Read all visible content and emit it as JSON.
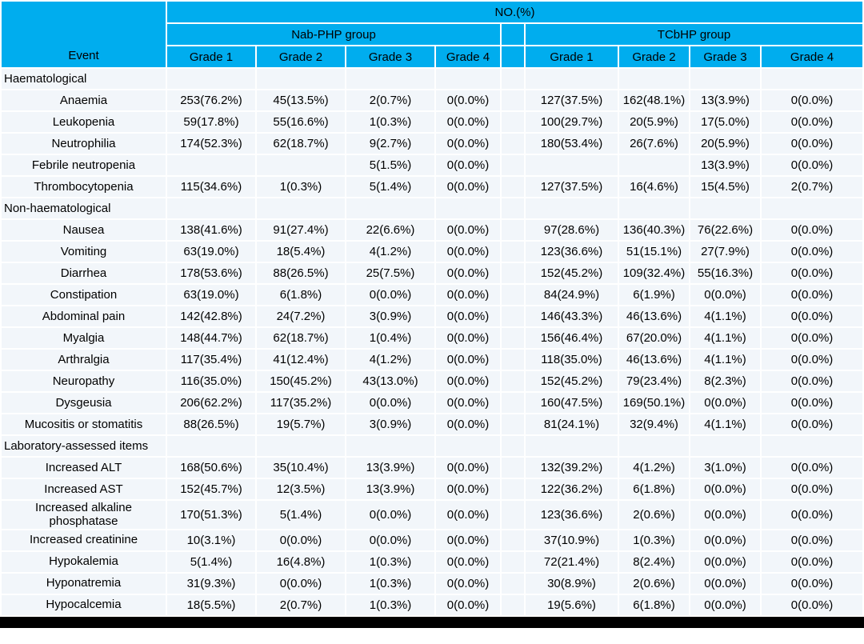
{
  "colors": {
    "header_bg": "#00ADEE",
    "row_bg": "#F2F6FA",
    "separator": "#FFFFFF",
    "text": "#000000",
    "bottom_bar": "#000000"
  },
  "table": {
    "top_header": "NO.(%)",
    "event_header": "Event",
    "groups": [
      {
        "name": "Nab-PHP group",
        "grades": [
          "Grade 1",
          "Grade 2",
          "Grade 3",
          "Grade 4"
        ]
      },
      {
        "name": "TCbHP group",
        "grades": [
          "Grade 1",
          "Grade 2",
          "Grade 3",
          "Grade 4"
        ]
      }
    ],
    "sections": [
      {
        "title": "Haematological",
        "rows": [
          {
            "event": "Anaemia",
            "nab": [
              "253(76.2%)",
              "45(13.5%)",
              "2(0.7%)",
              "0(0.0%)"
            ],
            "tcb": [
              "127(37.5%)",
              "162(48.1%)",
              "13(3.9%)",
              "0(0.0%)"
            ]
          },
          {
            "event": "Leukopenia",
            "nab": [
              "59(17.8%)",
              "55(16.6%)",
              "1(0.3%)",
              "0(0.0%)"
            ],
            "tcb": [
              "100(29.7%)",
              "20(5.9%)",
              "17(5.0%)",
              "0(0.0%)"
            ]
          },
          {
            "event": "Neutrophilia",
            "nab": [
              "174(52.3%)",
              "62(18.7%)",
              "9(2.7%)",
              "0(0.0%)"
            ],
            "tcb": [
              "180(53.4%)",
              "26(7.6%)",
              "20(5.9%)",
              "0(0.0%)"
            ]
          },
          {
            "event": "Febrile neutropenia",
            "nab": [
              "",
              "",
              "5(1.5%)",
              "0(0.0%)"
            ],
            "tcb": [
              "",
              "",
              "13(3.9%)",
              "0(0.0%)"
            ]
          },
          {
            "event": "Thrombocytopenia",
            "nab": [
              "115(34.6%)",
              "1(0.3%)",
              "5(1.4%)",
              "0(0.0%)"
            ],
            "tcb": [
              "127(37.5%)",
              "16(4.6%)",
              "15(4.5%)",
              "2(0.7%)"
            ]
          }
        ]
      },
      {
        "title": "Non-haematological",
        "rows": [
          {
            "event": "Nausea",
            "nab": [
              "138(41.6%)",
              "91(27.4%)",
              "22(6.6%)",
              "0(0.0%)"
            ],
            "tcb": [
              "97(28.6%)",
              "136(40.3%)",
              "76(22.6%)",
              "0(0.0%)"
            ]
          },
          {
            "event": "Vomiting",
            "nab": [
              "63(19.0%)",
              "18(5.4%)",
              "4(1.2%)",
              "0(0.0%)"
            ],
            "tcb": [
              "123(36.6%)",
              "51(15.1%)",
              "27(7.9%)",
              "0(0.0%)"
            ]
          },
          {
            "event": "Diarrhea",
            "nab": [
              "178(53.6%)",
              "88(26.5%)",
              "25(7.5%)",
              "0(0.0%)"
            ],
            "tcb": [
              "152(45.2%)",
              "109(32.4%)",
              "55(16.3%)",
              "0(0.0%)"
            ]
          },
          {
            "event": "Constipation",
            "nab": [
              "63(19.0%)",
              "6(1.8%)",
              "0(0.0%)",
              "0(0.0%)"
            ],
            "tcb": [
              "84(24.9%)",
              "6(1.9%)",
              "0(0.0%)",
              "0(0.0%)"
            ]
          },
          {
            "event": "Abdominal pain",
            "nab": [
              "142(42.8%)",
              "24(7.2%)",
              "3(0.9%)",
              "0(0.0%)"
            ],
            "tcb": [
              "146(43.3%)",
              "46(13.6%)",
              "4(1.1%)",
              "0(0.0%)"
            ]
          },
          {
            "event": "Myalgia",
            "nab": [
              "148(44.7%)",
              "62(18.7%)",
              "1(0.4%)",
              "0(0.0%)"
            ],
            "tcb": [
              "156(46.4%)",
              "67(20.0%)",
              "4(1.1%)",
              "0(0.0%)"
            ]
          },
          {
            "event": "Arthralgia",
            "nab": [
              "117(35.4%)",
              "41(12.4%)",
              "4(1.2%)",
              "0(0.0%)"
            ],
            "tcb": [
              "118(35.0%)",
              "46(13.6%)",
              "4(1.1%)",
              "0(0.0%)"
            ]
          },
          {
            "event": "Neuropathy",
            "nab": [
              "116(35.0%)",
              "150(45.2%)",
              "43(13.0%)",
              "0(0.0%)"
            ],
            "tcb": [
              "152(45.2%)",
              "79(23.4%)",
              "8(2.3%)",
              "0(0.0%)"
            ]
          },
          {
            "event": "Dysgeusia",
            "nab": [
              "206(62.2%)",
              "117(35.2%)",
              "0(0.0%)",
              "0(0.0%)"
            ],
            "tcb": [
              "160(47.5%)",
              "169(50.1%)",
              "0(0.0%)",
              "0(0.0%)"
            ]
          },
          {
            "event": "Mucositis or stomatitis",
            "nab": [
              "88(26.5%)",
              "19(5.7%)",
              "3(0.9%)",
              "0(0.0%)"
            ],
            "tcb": [
              "81(24.1%)",
              "32(9.4%)",
              "4(1.1%)",
              "0(0.0%)"
            ]
          }
        ]
      },
      {
        "title": "Laboratory-assessed items",
        "rows": [
          {
            "event": "Increased ALT",
            "nab": [
              "168(50.6%)",
              "35(10.4%)",
              "13(3.9%)",
              "0(0.0%)"
            ],
            "tcb": [
              "132(39.2%)",
              "4(1.2%)",
              "3(1.0%)",
              "0(0.0%)"
            ]
          },
          {
            "event": "Increased AST",
            "nab": [
              "152(45.7%)",
              "12(3.5%)",
              "13(3.9%)",
              "0(0.0%)"
            ],
            "tcb": [
              "122(36.2%)",
              "6(1.8%)",
              "0(0.0%)",
              "0(0.0%)"
            ]
          },
          {
            "event": "Increased alkaline phosphatase",
            "nab": [
              "170(51.3%)",
              "5(1.4%)",
              "0(0.0%)",
              "0(0.0%)"
            ],
            "tcb": [
              "123(36.6%)",
              "2(0.6%)",
              "0(0.0%)",
              "0(0.0%)"
            ]
          },
          {
            "event": "Increased creatinine",
            "nab": [
              "10(3.1%)",
              "0(0.0%)",
              "0(0.0%)",
              "0(0.0%)"
            ],
            "tcb": [
              "37(10.9%)",
              "1(0.3%)",
              "0(0.0%)",
              "0(0.0%)"
            ]
          },
          {
            "event": "Hypokalemia",
            "nab": [
              "5(1.4%)",
              "16(4.8%)",
              "1(0.3%)",
              "0(0.0%)"
            ],
            "tcb": [
              "72(21.4%)",
              "8(2.4%)",
              "0(0.0%)",
              "0(0.0%)"
            ]
          },
          {
            "event": "Hyponatremia",
            "nab": [
              "31(9.3%)",
              "0(0.0%)",
              "1(0.3%)",
              "0(0.0%)"
            ],
            "tcb": [
              "30(8.9%)",
              "2(0.6%)",
              "0(0.0%)",
              "0(0.0%)"
            ]
          },
          {
            "event": "Hypocalcemia",
            "nab": [
              "18(5.5%)",
              "2(0.7%)",
              "1(0.3%)",
              "0(0.0%)"
            ],
            "tcb": [
              "19(5.6%)",
              "6(1.8%)",
              "0(0.0%)",
              "0(0.0%)"
            ]
          }
        ]
      }
    ]
  }
}
